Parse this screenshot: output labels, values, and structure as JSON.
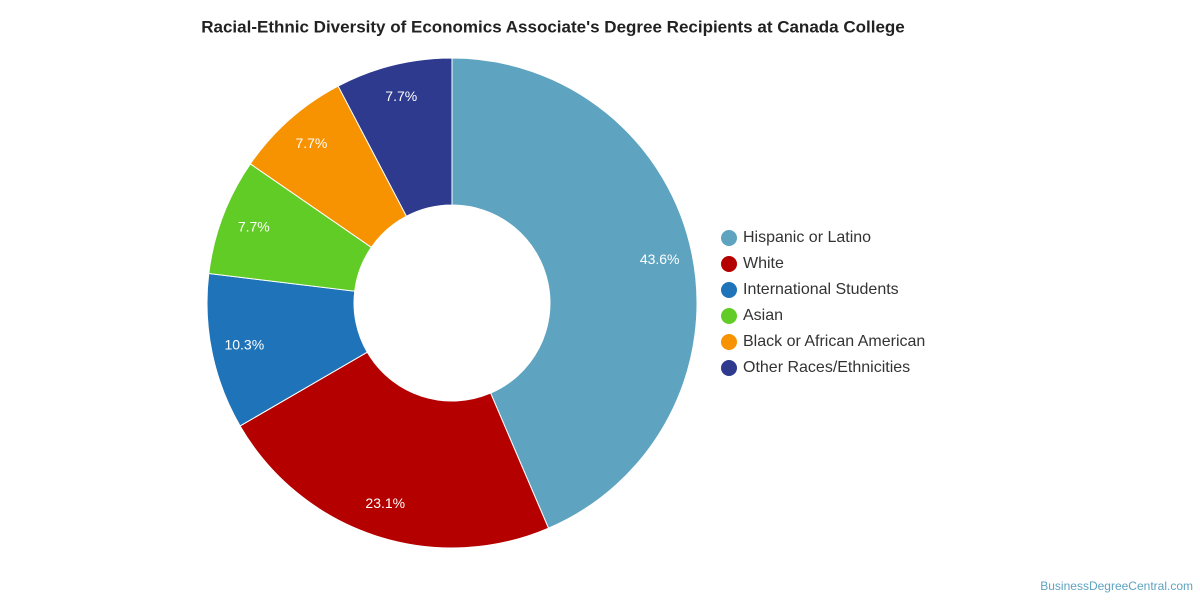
{
  "chart_data": {
    "type": "donut",
    "title": "Racial-Ethnic Diversity of Economics Associate's Degree Recipients at Canada College",
    "categories": [
      "Hispanic or Latino",
      "White",
      "International Students",
      "Asian",
      "Black or African American",
      "Other Races/Ethnicities"
    ],
    "values": [
      43.6,
      23.1,
      10.3,
      7.7,
      7.7,
      7.7
    ],
    "value_labels": [
      "43.6%",
      "23.1%",
      "10.3%",
      "7.7%",
      "7.7%",
      "7.7%"
    ],
    "colors": [
      "#5ea3c0",
      "#b50000",
      "#1f73b8",
      "#62cc26",
      "#f79200",
      "#2d3a8e"
    ],
    "legend": "right",
    "source": "BusinessDegreeCentral.com"
  }
}
